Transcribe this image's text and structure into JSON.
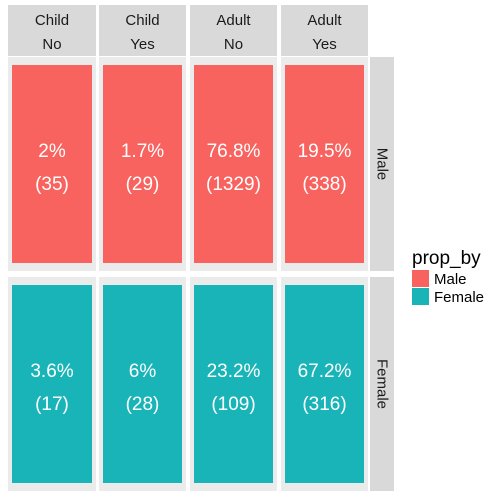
{
  "chart_data": {
    "type": "mosaic",
    "columns": [
      {
        "line1": "Child",
        "line2": "No"
      },
      {
        "line1": "Child",
        "line2": "Yes"
      },
      {
        "line1": "Adult",
        "line2": "No"
      },
      {
        "line1": "Adult",
        "line2": "Yes"
      }
    ],
    "rows": [
      "Male",
      "Female"
    ],
    "colors": {
      "Male": "#F8635F",
      "Female": "#19B4B7"
    },
    "cells": [
      [
        {
          "pct": "2%",
          "count": "(35)"
        },
        {
          "pct": "1.7%",
          "count": "(29)"
        },
        {
          "pct": "76.8%",
          "count": "(1329)"
        },
        {
          "pct": "19.5%",
          "count": "(338)"
        }
      ],
      [
        {
          "pct": "3.6%",
          "count": "(17)"
        },
        {
          "pct": "6%",
          "count": "(28)"
        },
        {
          "pct": "23.2%",
          "count": "(109)"
        },
        {
          "pct": "67.2%",
          "count": "(316)"
        }
      ]
    ],
    "legend": {
      "title": "prop_by",
      "items": [
        "Male",
        "Female"
      ],
      "placement": "right"
    }
  }
}
